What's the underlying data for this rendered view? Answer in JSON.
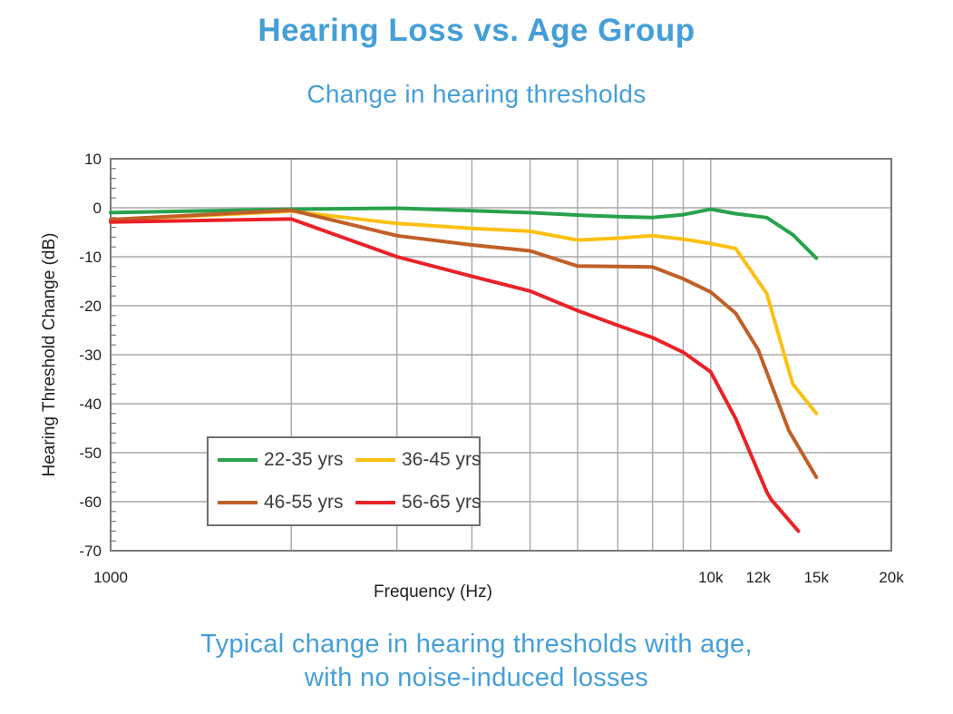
{
  "title": "Hearing Loss vs. Age Group",
  "subtitle": "Change in hearing thresholds",
  "caption": {
    "line1": "Typical change in hearing thresholds with age,",
    "line2": "with no noise-induced losses"
  },
  "colors": {
    "heading_blue": "#449fd8",
    "axis_text": "#1f1f1f",
    "grid": "#a8a8a8",
    "frame": "#7a7a7a",
    "legend_border": "#6e6e6e",
    "legend_text": "#3d3d3d"
  },
  "chart_data": {
    "type": "line",
    "xlabel": "Frequency (Hz)",
    "ylabel": "Hearing Threshold Change (dB)",
    "x_scale": "log",
    "xlim": [
      1000,
      20000
    ],
    "ylim": [
      -70,
      10
    ],
    "grid": "on",
    "legend_position": "inside-lower-left",
    "y_ticks": [
      10,
      0,
      -10,
      -20,
      -30,
      -40,
      -50,
      -60,
      -70
    ],
    "y_minor_tick_step": 2,
    "x_gridlines": [
      2000,
      3000,
      4000,
      5000,
      6000,
      7000,
      8000,
      9000,
      10000,
      20000
    ],
    "x_ticks": [
      {
        "f": 1000,
        "label": "1000"
      },
      {
        "f": 10000,
        "label": "10k"
      },
      {
        "f": 12000,
        "label": "12k"
      },
      {
        "f": 15000,
        "label": "15k"
      },
      {
        "f": 20000,
        "label": "20k"
      }
    ],
    "series": [
      {
        "name": "22-35 yrs",
        "color": "#28a24c",
        "points": [
          [
            1000,
            -1.0
          ],
          [
            2000,
            -0.3
          ],
          [
            3000,
            -0.1
          ],
          [
            4000,
            -0.6
          ],
          [
            5000,
            -1.0
          ],
          [
            6000,
            -1.5
          ],
          [
            7000,
            -1.8
          ],
          [
            8000,
            -2.0
          ],
          [
            9000,
            -1.4
          ],
          [
            10000,
            -0.3
          ],
          [
            11000,
            -1.2
          ],
          [
            12400,
            -2.0
          ],
          [
            13700,
            -5.5
          ],
          [
            15000,
            -10.3
          ]
        ]
      },
      {
        "name": "36-45 yrs",
        "color": "#fcc013",
        "points": [
          [
            1000,
            -2.5
          ],
          [
            2000,
            -0.7
          ],
          [
            3000,
            -3.2
          ],
          [
            4000,
            -4.2
          ],
          [
            5000,
            -4.8
          ],
          [
            6000,
            -6.6
          ],
          [
            7000,
            -6.2
          ],
          [
            8000,
            -5.7
          ],
          [
            9000,
            -6.4
          ],
          [
            10000,
            -7.3
          ],
          [
            11000,
            -8.3
          ],
          [
            12400,
            -17.5
          ],
          [
            13700,
            -36.0
          ],
          [
            15000,
            -42.0
          ]
        ]
      },
      {
        "name": "46-55 yrs",
        "color": "#c05f27",
        "points": [
          [
            1000,
            -2.4
          ],
          [
            2000,
            -0.5
          ],
          [
            3000,
            -5.7
          ],
          [
            4000,
            -7.6
          ],
          [
            5000,
            -8.8
          ],
          [
            6000,
            -11.9
          ],
          [
            7000,
            -12.0
          ],
          [
            8000,
            -12.1
          ],
          [
            9000,
            -14.5
          ],
          [
            10000,
            -17.2
          ],
          [
            11000,
            -21.5
          ],
          [
            12000,
            -29.0
          ],
          [
            13500,
            -45.5
          ],
          [
            15000,
            -55.0
          ]
        ]
      },
      {
        "name": "56-65 yrs",
        "color": "#ea2127",
        "points": [
          [
            1000,
            -2.9
          ],
          [
            2000,
            -2.3
          ],
          [
            3000,
            -10.0
          ],
          [
            4000,
            -14.0
          ],
          [
            5000,
            -17.0
          ],
          [
            6000,
            -21.0
          ],
          [
            7000,
            -24.0
          ],
          [
            8000,
            -26.5
          ],
          [
            9000,
            -29.5
          ],
          [
            10000,
            -33.5
          ],
          [
            11000,
            -43.0
          ],
          [
            12400,
            -58.0
          ],
          [
            12600,
            -59.5
          ],
          [
            14000,
            -66.0
          ]
        ]
      }
    ]
  }
}
